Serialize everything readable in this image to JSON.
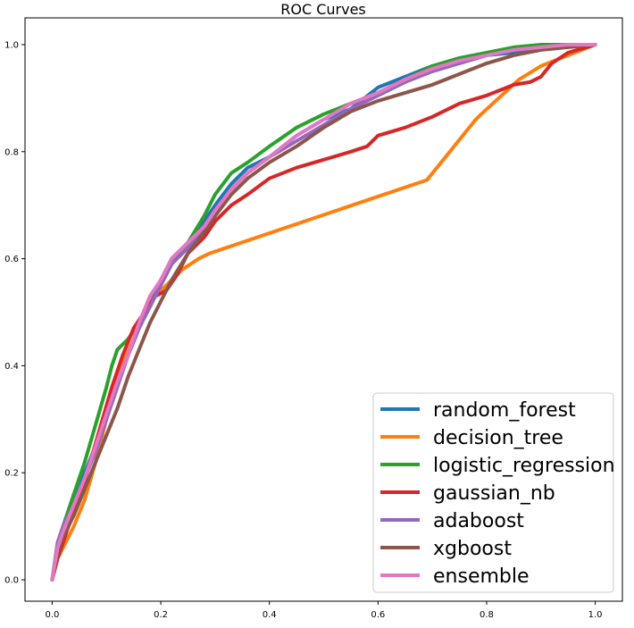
{
  "chart_data": {
    "type": "line",
    "title": "ROC Curves",
    "xlabel": "",
    "ylabel": "",
    "xlim": [
      -0.05,
      1.05
    ],
    "ylim": [
      -0.04,
      1.05
    ],
    "x_ticks": [
      0.0,
      0.2,
      0.4,
      0.6,
      0.8,
      1.0
    ],
    "x_tick_labels": [
      "0.0",
      "0.2",
      "0.4",
      "0.6",
      "0.8",
      "1.0"
    ],
    "y_ticks": [
      0.0,
      0.2,
      0.4,
      0.6,
      0.8,
      1.0
    ],
    "y_tick_labels": [
      "0.0",
      "0.2",
      "0.4",
      "0.6",
      "0.8",
      "1.0"
    ],
    "grid": false,
    "legend_position": "lower-right",
    "series": [
      {
        "name": "random_forest",
        "color": "#1f77b4",
        "x": [
          0,
          0.01,
          0.02,
          0.04,
          0.06,
          0.08,
          0.1,
          0.12,
          0.14,
          0.16,
          0.18,
          0.2,
          0.22,
          0.25,
          0.28,
          0.3,
          0.33,
          0.36,
          0.4,
          0.45,
          0.5,
          0.55,
          0.6,
          0.65,
          0.7,
          0.75,
          0.8,
          0.85,
          0.9,
          0.95,
          1.0
        ],
        "y": [
          0,
          0.06,
          0.09,
          0.14,
          0.2,
          0.25,
          0.31,
          0.37,
          0.42,
          0.47,
          0.52,
          0.56,
          0.6,
          0.63,
          0.67,
          0.7,
          0.74,
          0.77,
          0.79,
          0.83,
          0.86,
          0.88,
          0.92,
          0.94,
          0.96,
          0.97,
          0.98,
          0.985,
          0.995,
          1.0,
          1.0
        ]
      },
      {
        "name": "decision_tree",
        "color": "#ff7f0e",
        "x": [
          0,
          0.01,
          0.02,
          0.03,
          0.04,
          0.06,
          0.08,
          0.1,
          0.12,
          0.15,
          0.18,
          0.21,
          0.24,
          0.27,
          0.29,
          0.69,
          0.78,
          0.79,
          0.86,
          0.9,
          0.95,
          1.0
        ],
        "y": [
          0,
          0.04,
          0.06,
          0.08,
          0.1,
          0.15,
          0.22,
          0.3,
          0.38,
          0.45,
          0.52,
          0.55,
          0.58,
          0.6,
          0.61,
          0.747,
          0.86,
          0.87,
          0.935,
          0.96,
          0.98,
          1.0
        ]
      },
      {
        "name": "logistic_regression",
        "color": "#2ca02c",
        "x": [
          0,
          0.01,
          0.02,
          0.04,
          0.06,
          0.08,
          0.1,
          0.11,
          0.12,
          0.14,
          0.16,
          0.18,
          0.2,
          0.22,
          0.25,
          0.28,
          0.3,
          0.33,
          0.36,
          0.4,
          0.45,
          0.5,
          0.55,
          0.6,
          0.65,
          0.7,
          0.75,
          0.8,
          0.85,
          0.9,
          0.95,
          1.0
        ],
        "y": [
          0,
          0.06,
          0.1,
          0.16,
          0.22,
          0.29,
          0.36,
          0.4,
          0.43,
          0.45,
          0.48,
          0.51,
          0.55,
          0.59,
          0.63,
          0.68,
          0.72,
          0.76,
          0.78,
          0.81,
          0.845,
          0.87,
          0.89,
          0.91,
          0.935,
          0.96,
          0.975,
          0.985,
          0.995,
          1.0,
          1.0,
          1.0
        ]
      },
      {
        "name": "gaussian_nb",
        "color": "#d62728",
        "x": [
          0,
          0.01,
          0.02,
          0.03,
          0.05,
          0.07,
          0.09,
          0.11,
          0.13,
          0.15,
          0.17,
          0.19,
          0.21,
          0.23,
          0.25,
          0.28,
          0.3,
          0.33,
          0.36,
          0.4,
          0.45,
          0.5,
          0.55,
          0.58,
          0.6,
          0.65,
          0.7,
          0.75,
          0.8,
          0.85,
          0.88,
          0.9,
          0.92,
          0.95,
          1.0
        ],
        "y": [
          0,
          0.04,
          0.07,
          0.1,
          0.15,
          0.22,
          0.29,
          0.36,
          0.42,
          0.47,
          0.5,
          0.53,
          0.54,
          0.57,
          0.61,
          0.64,
          0.67,
          0.7,
          0.72,
          0.75,
          0.77,
          0.785,
          0.8,
          0.81,
          0.83,
          0.845,
          0.865,
          0.89,
          0.905,
          0.925,
          0.93,
          0.94,
          0.965,
          0.985,
          1.0
        ]
      },
      {
        "name": "adaboost",
        "color": "#9467bd",
        "x": [
          0,
          0.01,
          0.02,
          0.04,
          0.06,
          0.08,
          0.1,
          0.12,
          0.14,
          0.16,
          0.18,
          0.2,
          0.22,
          0.25,
          0.28,
          0.3,
          0.33,
          0.36,
          0.4,
          0.45,
          0.5,
          0.55,
          0.6,
          0.65,
          0.7,
          0.75,
          0.8,
          0.85,
          0.9,
          0.95,
          1.0
        ],
        "y": [
          0,
          0.07,
          0.1,
          0.14,
          0.19,
          0.24,
          0.3,
          0.36,
          0.42,
          0.47,
          0.51,
          0.55,
          0.59,
          0.62,
          0.66,
          0.69,
          0.73,
          0.76,
          0.79,
          0.82,
          0.85,
          0.88,
          0.905,
          0.93,
          0.95,
          0.965,
          0.98,
          0.99,
          0.995,
          1.0,
          1.0
        ]
      },
      {
        "name": "xgboost",
        "color": "#8c564b",
        "x": [
          0,
          0.01,
          0.02,
          0.04,
          0.06,
          0.08,
          0.1,
          0.12,
          0.14,
          0.16,
          0.18,
          0.2,
          0.22,
          0.25,
          0.28,
          0.3,
          0.33,
          0.36,
          0.4,
          0.45,
          0.5,
          0.55,
          0.6,
          0.65,
          0.7,
          0.75,
          0.8,
          0.85,
          0.9,
          0.95,
          1.0
        ],
        "y": [
          0,
          0.05,
          0.08,
          0.12,
          0.17,
          0.22,
          0.27,
          0.32,
          0.38,
          0.43,
          0.48,
          0.52,
          0.56,
          0.61,
          0.65,
          0.68,
          0.72,
          0.75,
          0.78,
          0.81,
          0.845,
          0.875,
          0.895,
          0.91,
          0.925,
          0.945,
          0.965,
          0.98,
          0.99,
          0.995,
          1.0
        ]
      },
      {
        "name": "ensemble",
        "color": "#e377c2",
        "x": [
          0,
          0.01,
          0.02,
          0.04,
          0.06,
          0.08,
          0.1,
          0.12,
          0.14,
          0.16,
          0.18,
          0.2,
          0.22,
          0.25,
          0.28,
          0.3,
          0.33,
          0.36,
          0.4,
          0.45,
          0.5,
          0.55,
          0.6,
          0.65,
          0.7,
          0.75,
          0.8,
          0.85,
          0.9,
          0.95,
          1.0
        ],
        "y": [
          0,
          0.06,
          0.09,
          0.14,
          0.19,
          0.25,
          0.31,
          0.37,
          0.42,
          0.48,
          0.53,
          0.56,
          0.6,
          0.63,
          0.66,
          0.69,
          0.73,
          0.76,
          0.79,
          0.83,
          0.86,
          0.89,
          0.91,
          0.935,
          0.955,
          0.97,
          0.98,
          0.99,
          0.995,
          1.0,
          1.0
        ]
      }
    ]
  }
}
